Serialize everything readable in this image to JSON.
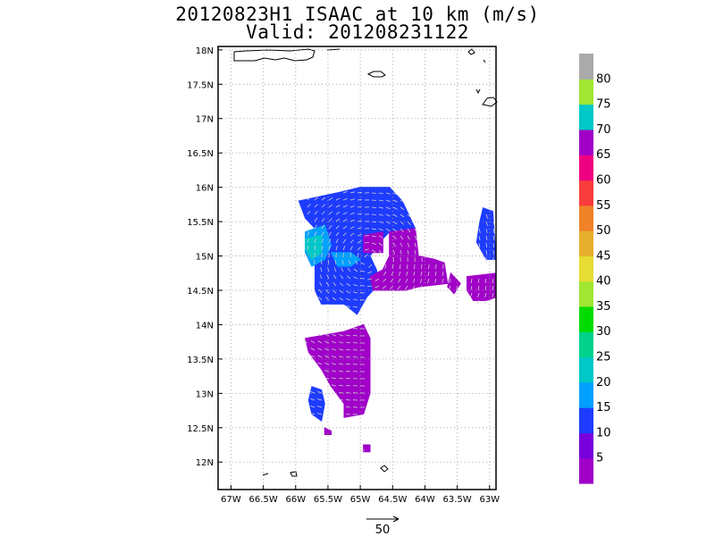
{
  "chart_data": {
    "type": "heatmap",
    "title": "20120823H1 ISAAC at 10 km (m/s)",
    "subtitle": "Valid: 201208231122",
    "x_ticks": [
      "67W",
      "66.5W",
      "66W",
      "65.5W",
      "65W",
      "64.5W",
      "64W",
      "63.5W",
      "63W"
    ],
    "y_ticks": [
      "18N",
      "17.5N",
      "17N",
      "16.5N",
      "16N",
      "15.5N",
      "15N",
      "14.5N",
      "14N",
      "13.5N",
      "13N",
      "12.5N",
      "12N"
    ],
    "x_range_lon": [
      -67.2,
      -62.9
    ],
    "y_range_lat": [
      11.6,
      18.05
    ],
    "grid": true,
    "colorbar": {
      "labels": [
        "5",
        "10",
        "15",
        "20",
        "25",
        "30",
        "35",
        "40",
        "45",
        "50",
        "55",
        "60",
        "65",
        "70",
        "75",
        "80"
      ],
      "colors": [
        "#a000c8",
        "#7800dc",
        "#1e3cff",
        "#00a0ff",
        "#00c8c8",
        "#00d28c",
        "#00dc00",
        "#a0e632",
        "#e6dc32",
        "#e6af2d",
        "#f08228",
        "#fa3c3c",
        "#f00082",
        "#a000c8",
        "#00c8c8",
        "#a0e632",
        "#aaaaaa"
      ]
    },
    "wind_regions": [
      {
        "band": "15-20",
        "color": "#1e3cff",
        "poly": [
          [
            -65.95,
            15.8
          ],
          [
            -65.35,
            15.92
          ],
          [
            -65.0,
            16.0
          ],
          [
            -64.55,
            16.0
          ],
          [
            -64.45,
            15.9
          ],
          [
            -64.35,
            15.8
          ],
          [
            -64.15,
            15.4
          ],
          [
            -64.25,
            15.25
          ],
          [
            -64.55,
            15.35
          ],
          [
            -64.7,
            15.2
          ],
          [
            -64.85,
            15.0
          ],
          [
            -64.75,
            14.8
          ],
          [
            -64.7,
            14.6
          ],
          [
            -64.9,
            14.4
          ],
          [
            -65.05,
            14.15
          ],
          [
            -65.25,
            14.3
          ],
          [
            -65.6,
            14.3
          ],
          [
            -65.7,
            14.5
          ],
          [
            -65.7,
            14.9
          ],
          [
            -65.6,
            15.3
          ],
          [
            -65.85,
            15.55
          ]
        ]
      },
      {
        "band": "15-20",
        "color": "#1e3cff",
        "poly": [
          [
            -63.1,
            15.7
          ],
          [
            -62.95,
            15.65
          ],
          [
            -62.9,
            14.95
          ],
          [
            -63.05,
            14.95
          ],
          [
            -63.2,
            15.2
          ],
          [
            -63.15,
            15.5
          ]
        ]
      },
      {
        "band": "15-20",
        "color": "#1e3cff",
        "poly": [
          [
            -65.75,
            13.1
          ],
          [
            -65.6,
            13.05
          ],
          [
            -65.55,
            12.85
          ],
          [
            -65.6,
            12.6
          ],
          [
            -65.75,
            12.7
          ],
          [
            -65.8,
            12.9
          ]
        ]
      },
      {
        "band": "20-25",
        "color": "#00a0ff",
        "poly": [
          [
            -65.85,
            15.35
          ],
          [
            -65.55,
            15.45
          ],
          [
            -65.45,
            15.15
          ],
          [
            -65.55,
            14.95
          ],
          [
            -65.75,
            14.85
          ],
          [
            -65.85,
            15.05
          ]
        ]
      },
      {
        "band": "20-25",
        "color": "#00a0ff",
        "poly": [
          [
            -65.45,
            15.05
          ],
          [
            -65.15,
            15.05
          ],
          [
            -65.0,
            14.95
          ],
          [
            -65.15,
            14.85
          ],
          [
            -65.35,
            14.85
          ]
        ]
      },
      {
        "band": "25-30",
        "color": "#00c8c8",
        "poly": [
          [
            -65.85,
            15.25
          ],
          [
            -65.6,
            15.3
          ],
          [
            -65.6,
            15.05
          ],
          [
            -65.75,
            14.95
          ],
          [
            -65.85,
            15.1
          ]
        ]
      },
      {
        "band": "0-10",
        "color": "#a000c8",
        "poly": [
          [
            -64.95,
            15.3
          ],
          [
            -64.65,
            15.35
          ],
          [
            -64.65,
            15.05
          ],
          [
            -64.95,
            15.05
          ]
        ]
      },
      {
        "band": "0-10",
        "color": "#a000c8",
        "poly": [
          [
            -64.55,
            15.35
          ],
          [
            -64.15,
            15.4
          ],
          [
            -64.1,
            15.0
          ],
          [
            -63.85,
            14.95
          ],
          [
            -63.7,
            14.9
          ],
          [
            -63.65,
            14.6
          ],
          [
            -64.1,
            14.55
          ],
          [
            -64.3,
            14.5
          ],
          [
            -64.8,
            14.5
          ],
          [
            -64.85,
            14.7
          ],
          [
            -64.65,
            14.8
          ],
          [
            -64.55,
            15.0
          ]
        ]
      },
      {
        "band": "0-10",
        "color": "#a000c8",
        "poly": [
          [
            -63.6,
            14.75
          ],
          [
            -63.45,
            14.6
          ],
          [
            -63.55,
            14.45
          ],
          [
            -63.65,
            14.55
          ]
        ]
      },
      {
        "band": "0-10",
        "color": "#a000c8",
        "poly": [
          [
            -63.35,
            14.7
          ],
          [
            -62.9,
            14.75
          ],
          [
            -62.9,
            14.4
          ],
          [
            -63.05,
            14.35
          ],
          [
            -63.25,
            14.35
          ],
          [
            -63.35,
            14.5
          ]
        ]
      },
      {
        "band": "0-10",
        "color": "#a000c8",
        "poly": [
          [
            -65.85,
            13.8
          ],
          [
            -65.55,
            13.85
          ],
          [
            -65.25,
            13.9
          ],
          [
            -64.95,
            14.0
          ],
          [
            -64.85,
            13.8
          ],
          [
            -64.85,
            13.0
          ],
          [
            -64.95,
            12.7
          ],
          [
            -65.25,
            12.65
          ],
          [
            -65.25,
            12.85
          ],
          [
            -65.45,
            13.1
          ],
          [
            -65.6,
            13.35
          ],
          [
            -65.8,
            13.6
          ]
        ]
      },
      {
        "band": "0-10",
        "color": "#a000c8",
        "poly": [
          [
            -65.55,
            12.5
          ],
          [
            -65.45,
            12.45
          ],
          [
            -65.45,
            12.4
          ],
          [
            -65.55,
            12.4
          ]
        ]
      },
      {
        "band": "0-10",
        "color": "#a000c8",
        "poly": [
          [
            -64.95,
            12.25
          ],
          [
            -64.85,
            12.25
          ],
          [
            -64.85,
            12.15
          ],
          [
            -64.95,
            12.15
          ]
        ]
      }
    ],
    "reference_vector": "50"
  }
}
